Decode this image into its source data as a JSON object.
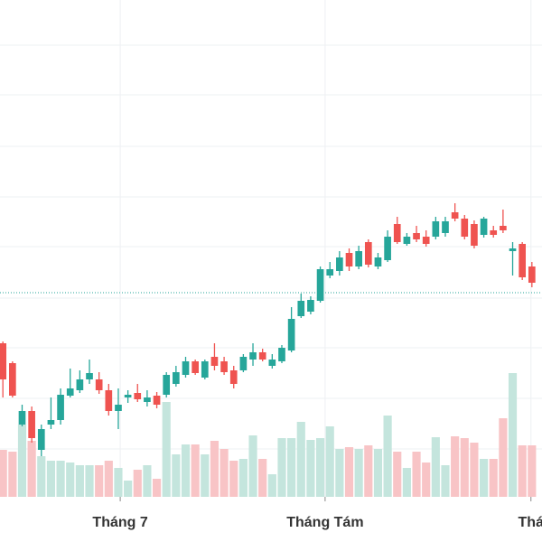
{
  "chart_data": {
    "type": "candlestick",
    "open": [
      170,
      148,
      80,
      95,
      52,
      80,
      85,
      112,
      118,
      130,
      130,
      118,
      95,
      110,
      115,
      105,
      112,
      113,
      125,
      135,
      150,
      132,
      155,
      150,
      140,
      140,
      152,
      160,
      145,
      150,
      162,
      200,
      205,
      217,
      245,
      250,
      270,
      255,
      282,
      255,
      262,
      302,
      280,
      292,
      288,
      288,
      292,
      315,
      308,
      302,
      290,
      295,
      300,
      272,
      280,
      255
    ],
    "high": [
      172,
      150,
      102,
      100,
      80,
      110,
      120,
      142,
      140,
      152,
      138,
      125,
      120,
      118,
      125,
      118,
      116,
      138,
      145,
      155,
      152,
      152,
      170,
      155,
      145,
      158,
      170,
      164,
      158,
      168,
      210,
      225,
      222,
      255,
      260,
      272,
      275,
      278,
      285,
      270,
      295,
      310,
      292,
      300,
      295,
      310,
      310,
      325,
      312,
      306,
      310,
      300,
      318,
      282,
      282,
      260
    ],
    "low": [
      110,
      110,
      78,
      60,
      45,
      75,
      80,
      110,
      115,
      125,
      114,
      90,
      75,
      104,
      105,
      100,
      98,
      110,
      122,
      132,
      135,
      130,
      140,
      135,
      120,
      138,
      145,
      150,
      142,
      148,
      160,
      198,
      202,
      215,
      242,
      245,
      250,
      252,
      254,
      252,
      260,
      280,
      278,
      282,
      277,
      285,
      288,
      305,
      285,
      275,
      287,
      287,
      292,
      245,
      240,
      232
    ],
    "close": [
      130,
      112,
      95,
      65,
      75,
      85,
      113,
      120,
      130,
      137,
      118,
      95,
      102,
      113,
      108,
      110,
      102,
      135,
      138,
      150,
      137,
      150,
      145,
      138,
      125,
      155,
      160,
      152,
      152,
      165,
      197,
      217,
      218,
      252,
      252,
      265,
      255,
      272,
      257,
      265,
      288,
      282,
      288,
      285,
      280,
      305,
      305,
      308,
      288,
      278,
      308,
      290,
      295,
      275,
      243,
      237
    ],
    "volume": [
      52,
      50,
      80,
      62,
      45,
      40,
      40,
      38,
      35,
      35,
      35,
      40,
      32,
      18,
      30,
      35,
      20,
      105,
      47,
      58,
      58,
      47,
      62,
      53,
      40,
      42,
      68,
      42,
      25,
      65,
      65,
      83,
      63,
      65,
      78,
      53,
      55,
      53,
      57,
      53,
      90,
      50,
      32,
      50,
      38,
      66,
      35,
      67,
      65,
      60,
      42,
      42,
      87,
      137,
      57,
      57
    ],
    "ylim": [
      0,
      550
    ],
    "y2lim": [
      0,
      550
    ],
    "yticks": [
      53,
      109,
      165,
      220,
      277,
      332,
      388,
      445,
      500
    ],
    "xlim": [
      -0.3,
      56.05
    ],
    "xticks": [
      {
        "value": 12.2,
        "label": "Tháng 7"
      },
      {
        "value": 33.5,
        "label": "Tháng Tám"
      },
      {
        "value": 54.9,
        "label": "Thá"
      }
    ],
    "price_line": 226,
    "price_line_color": "#26a69a",
    "up_color": "#26a69a",
    "down_color": "#ef5350",
    "volume_up_color": "#c4e5dd",
    "volume_down_color": "#f8c4c6",
    "grid": true
  }
}
